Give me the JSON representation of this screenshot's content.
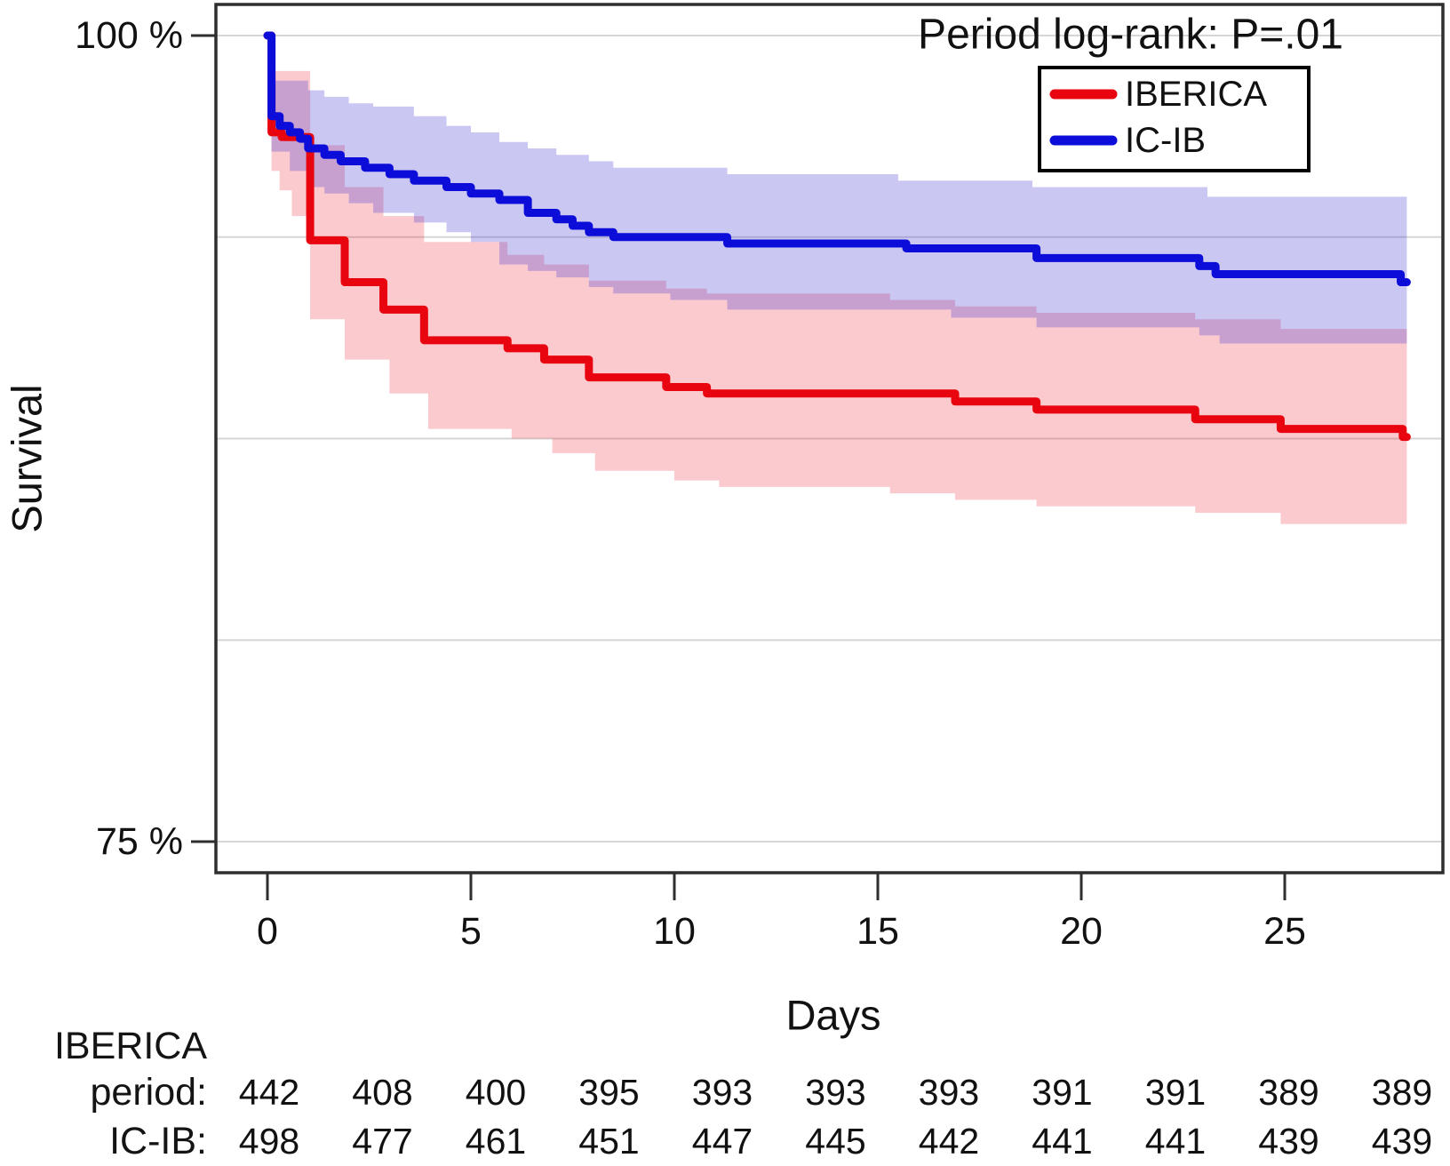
{
  "figure": {
    "annotation": "Period log-rank: P=.01",
    "y_axis_label": "Survival",
    "x_axis_label": "Days"
  },
  "legend": {
    "items": [
      {
        "label": "IBERICA",
        "color": "#e8050f"
      },
      {
        "label": "IC-IB",
        "color": "#0d0dd9"
      }
    ]
  },
  "chart_data": {
    "type": "line",
    "subtype": "kaplan-meier-step-with-confidence-bands",
    "title": "Period log-rank: P=.01",
    "xlabel": "Days",
    "ylabel": "Survival",
    "x_ticks": [
      0,
      5,
      10,
      15,
      20,
      25
    ],
    "xlim_days": [
      0,
      28.9
    ],
    "ylim_pct": [
      74,
      101
    ],
    "y_tick_labels": [
      {
        "label": "100 %",
        "value": 100
      },
      {
        "label": "75 %",
        "value": 75
      }
    ],
    "gridlines_pct": [
      100,
      93.75,
      87.5,
      81.25,
      75
    ],
    "grid": "horizontal-only",
    "legend_position": "top-right",
    "end_day": 28,
    "series": [
      {
        "name": "IBERICA",
        "color": "#e8050f",
        "band_color": "rgba(231,5,30,0.21)",
        "steps": [
          [
            0,
            100
          ],
          [
            0.1,
            97.0
          ],
          [
            0.35,
            96.85
          ],
          [
            1.05,
            93.65
          ],
          [
            1.9,
            92.35
          ],
          [
            2.85,
            91.5
          ],
          [
            3.85,
            90.55
          ],
          [
            5.9,
            90.3
          ],
          [
            6.8,
            89.95
          ],
          [
            7.9,
            89.4
          ],
          [
            9.8,
            89.1
          ],
          [
            10.8,
            88.9
          ],
          [
            16.9,
            88.65
          ],
          [
            18.9,
            88.4
          ],
          [
            22.8,
            88.1
          ],
          [
            24.9,
            87.8
          ],
          [
            27.9,
            87.55
          ]
        ],
        "band_hi": [
          [
            0,
            100
          ],
          [
            0.1,
            98.9
          ],
          [
            1.05,
            96.6
          ],
          [
            1.9,
            95.3
          ],
          [
            2.85,
            94.4
          ],
          [
            3.85,
            93.6
          ],
          [
            5.9,
            93.2
          ],
          [
            6.8,
            92.9
          ],
          [
            7.9,
            92.4
          ],
          [
            9.8,
            92.15
          ],
          [
            10.8,
            92.0
          ],
          [
            15.3,
            91.8
          ],
          [
            16.9,
            91.6
          ],
          [
            18.9,
            91.4
          ],
          [
            22.8,
            91.2
          ],
          [
            24.9,
            90.9
          ]
        ],
        "band_lo": [
          [
            0,
            100
          ],
          [
            0.1,
            95.8
          ],
          [
            0.3,
            95.2
          ],
          [
            0.6,
            94.4
          ],
          [
            1.05,
            91.2
          ],
          [
            1.9,
            89.95
          ],
          [
            3.0,
            88.9
          ],
          [
            3.95,
            87.8
          ],
          [
            6.0,
            87.5
          ],
          [
            7.0,
            87.05
          ],
          [
            8.05,
            86.5
          ],
          [
            10.0,
            86.2
          ],
          [
            11.1,
            86.0
          ],
          [
            15.3,
            85.8
          ],
          [
            16.9,
            85.6
          ],
          [
            18.9,
            85.4
          ],
          [
            22.8,
            85.2
          ],
          [
            24.9,
            84.85
          ]
        ]
      },
      {
        "name": "IC-IB",
        "color": "#0d0dd9",
        "band_color": "rgba(70,55,212,0.28)",
        "steps": [
          [
            0,
            100
          ],
          [
            0.1,
            97.5
          ],
          [
            0.3,
            97.2
          ],
          [
            0.55,
            97.0
          ],
          [
            0.8,
            96.8
          ],
          [
            1.0,
            96.5
          ],
          [
            1.4,
            96.3
          ],
          [
            1.8,
            96.1
          ],
          [
            2.4,
            95.9
          ],
          [
            3.0,
            95.7
          ],
          [
            3.6,
            95.5
          ],
          [
            4.4,
            95.3
          ],
          [
            5.0,
            95.1
          ],
          [
            5.7,
            94.9
          ],
          [
            6.4,
            94.5
          ],
          [
            7.1,
            94.3
          ],
          [
            7.5,
            94.1
          ],
          [
            7.9,
            93.9
          ],
          [
            8.5,
            93.75
          ],
          [
            11.3,
            93.55
          ],
          [
            15.7,
            93.4
          ],
          [
            18.9,
            93.1
          ],
          [
            22.9,
            92.85
          ],
          [
            23.3,
            92.6
          ],
          [
            27.85,
            92.35
          ]
        ],
        "band_hi": [
          [
            0,
            100
          ],
          [
            0.1,
            98.6
          ],
          [
            1.0,
            98.3
          ],
          [
            1.4,
            98.1
          ],
          [
            2.0,
            97.9
          ],
          [
            2.6,
            97.8
          ],
          [
            3.6,
            97.5
          ],
          [
            4.4,
            97.2
          ],
          [
            5.0,
            97.0
          ],
          [
            5.7,
            96.7
          ],
          [
            6.4,
            96.5
          ],
          [
            7.1,
            96.3
          ],
          [
            7.9,
            96.1
          ],
          [
            8.5,
            95.9
          ],
          [
            11.3,
            95.7
          ],
          [
            15.5,
            95.5
          ],
          [
            18.8,
            95.3
          ],
          [
            23.1,
            95.0
          ]
        ],
        "band_lo": [
          [
            0,
            100
          ],
          [
            0.1,
            96.4
          ],
          [
            0.55,
            95.8
          ],
          [
            1.0,
            95.3
          ],
          [
            1.4,
            95.1
          ],
          [
            2.0,
            94.8
          ],
          [
            2.6,
            94.5
          ],
          [
            3.6,
            94.2
          ],
          [
            4.4,
            93.9
          ],
          [
            5.0,
            93.6
          ],
          [
            5.7,
            92.9
          ],
          [
            6.4,
            92.7
          ],
          [
            7.1,
            92.5
          ],
          [
            7.9,
            92.2
          ],
          [
            8.5,
            92.0
          ],
          [
            9.9,
            91.8
          ],
          [
            11.3,
            91.5
          ],
          [
            16.8,
            91.25
          ],
          [
            18.9,
            90.95
          ],
          [
            22.9,
            90.7
          ],
          [
            23.4,
            90.45
          ]
        ]
      }
    ]
  },
  "risk_table": {
    "group_label_line1": "IBERICA",
    "group_label_line2": "period:",
    "group_label_line3": "IC-IB:",
    "rows": [
      {
        "name": "IBERICA period",
        "color": "#da4a44",
        "values": [
          442,
          408,
          400,
          395,
          393,
          393,
          393,
          391,
          391,
          389,
          389
        ]
      },
      {
        "name": "IC-IB",
        "color": "#2b2bd6",
        "values": [
          498,
          477,
          461,
          451,
          447,
          445,
          442,
          441,
          441,
          439,
          439
        ]
      }
    ]
  }
}
